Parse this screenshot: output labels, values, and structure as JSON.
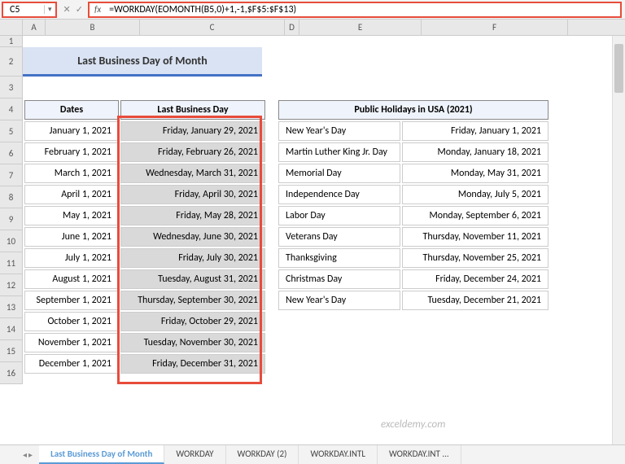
{
  "formula_bar": {
    "cell_ref": "C5",
    "formula": "=WORKDAY(EOMONTH(B5,0)+1,-1,$F$5:$F$13)"
  },
  "title": "Last Business Day of Month",
  "columns": [
    "A",
    "B",
    "C",
    "D",
    "E",
    "F"
  ],
  "rows": [
    "1",
    "2",
    "3",
    "4",
    "5",
    "6",
    "7",
    "8",
    "9",
    "10",
    "11",
    "12",
    "13",
    "14",
    "15",
    "16"
  ],
  "table1": {
    "headers": {
      "dates": "Dates",
      "lbd": "Last Business Day"
    },
    "data": [
      {
        "date": "January 1, 2021",
        "lbd": "Friday, January 29, 2021"
      },
      {
        "date": "February 1, 2021",
        "lbd": "Friday, February 26, 2021"
      },
      {
        "date": "March 1, 2021",
        "lbd": "Wednesday, March 31, 2021"
      },
      {
        "date": "April 1, 2021",
        "lbd": "Friday, April 30, 2021"
      },
      {
        "date": "May 1, 2021",
        "lbd": "Friday, May 28, 2021"
      },
      {
        "date": "June 1, 2021",
        "lbd": "Wednesday, June 30, 2021"
      },
      {
        "date": "July 1, 2021",
        "lbd": "Friday, July 30, 2021"
      },
      {
        "date": "August 1, 2021",
        "lbd": "Tuesday, August 31, 2021"
      },
      {
        "date": "September 1, 2021",
        "lbd": "Thursday, September 30, 2021"
      },
      {
        "date": "October 1, 2021",
        "lbd": "Friday, October 29, 2021"
      },
      {
        "date": "November 1, 2021",
        "lbd": "Tuesday, November 30, 2021"
      },
      {
        "date": "December 1, 2021",
        "lbd": "Friday, December 31, 2021"
      }
    ]
  },
  "table2": {
    "header": "Public Holidays in USA (2021)",
    "data": [
      {
        "name": "New Year's Day",
        "date": "Friday, January 1, 2021"
      },
      {
        "name": "Martin Luther King Jr. Day",
        "date": "Monday, January 18, 2021"
      },
      {
        "name": "Memorial Day",
        "date": "Monday, May 31, 2021"
      },
      {
        "name": "Independence Day",
        "date": "Monday, July 5, 2021"
      },
      {
        "name": "Labor Day",
        "date": "Monday, September 6, 2021"
      },
      {
        "name": "Veterans Day",
        "date": "Thursday, November 11, 2021"
      },
      {
        "name": "Thanksgiving",
        "date": "Thursday, November 25, 2021"
      },
      {
        "name": "Christmas Day",
        "date": "Friday, December 24, 2021"
      },
      {
        "name": "New Year's Day",
        "date": "Tuesday, December 21, 2021"
      }
    ]
  },
  "watermark": "exceldemy.com",
  "tabs": {
    "items": [
      "Last Business Day of Month",
      "WORKDAY",
      "WORKDAY (2)",
      "WORKDAY.INTL",
      "WORKDAY.INT ..."
    ],
    "active": 0
  },
  "colors": {
    "highlight_border": "#e74c3c",
    "title_bg": "#dae3f3",
    "title_border": "#4472c4",
    "header_bg": "#eff3fb",
    "selection_bg": "#d9d9d9",
    "active_tab": "#5b9bd5"
  }
}
